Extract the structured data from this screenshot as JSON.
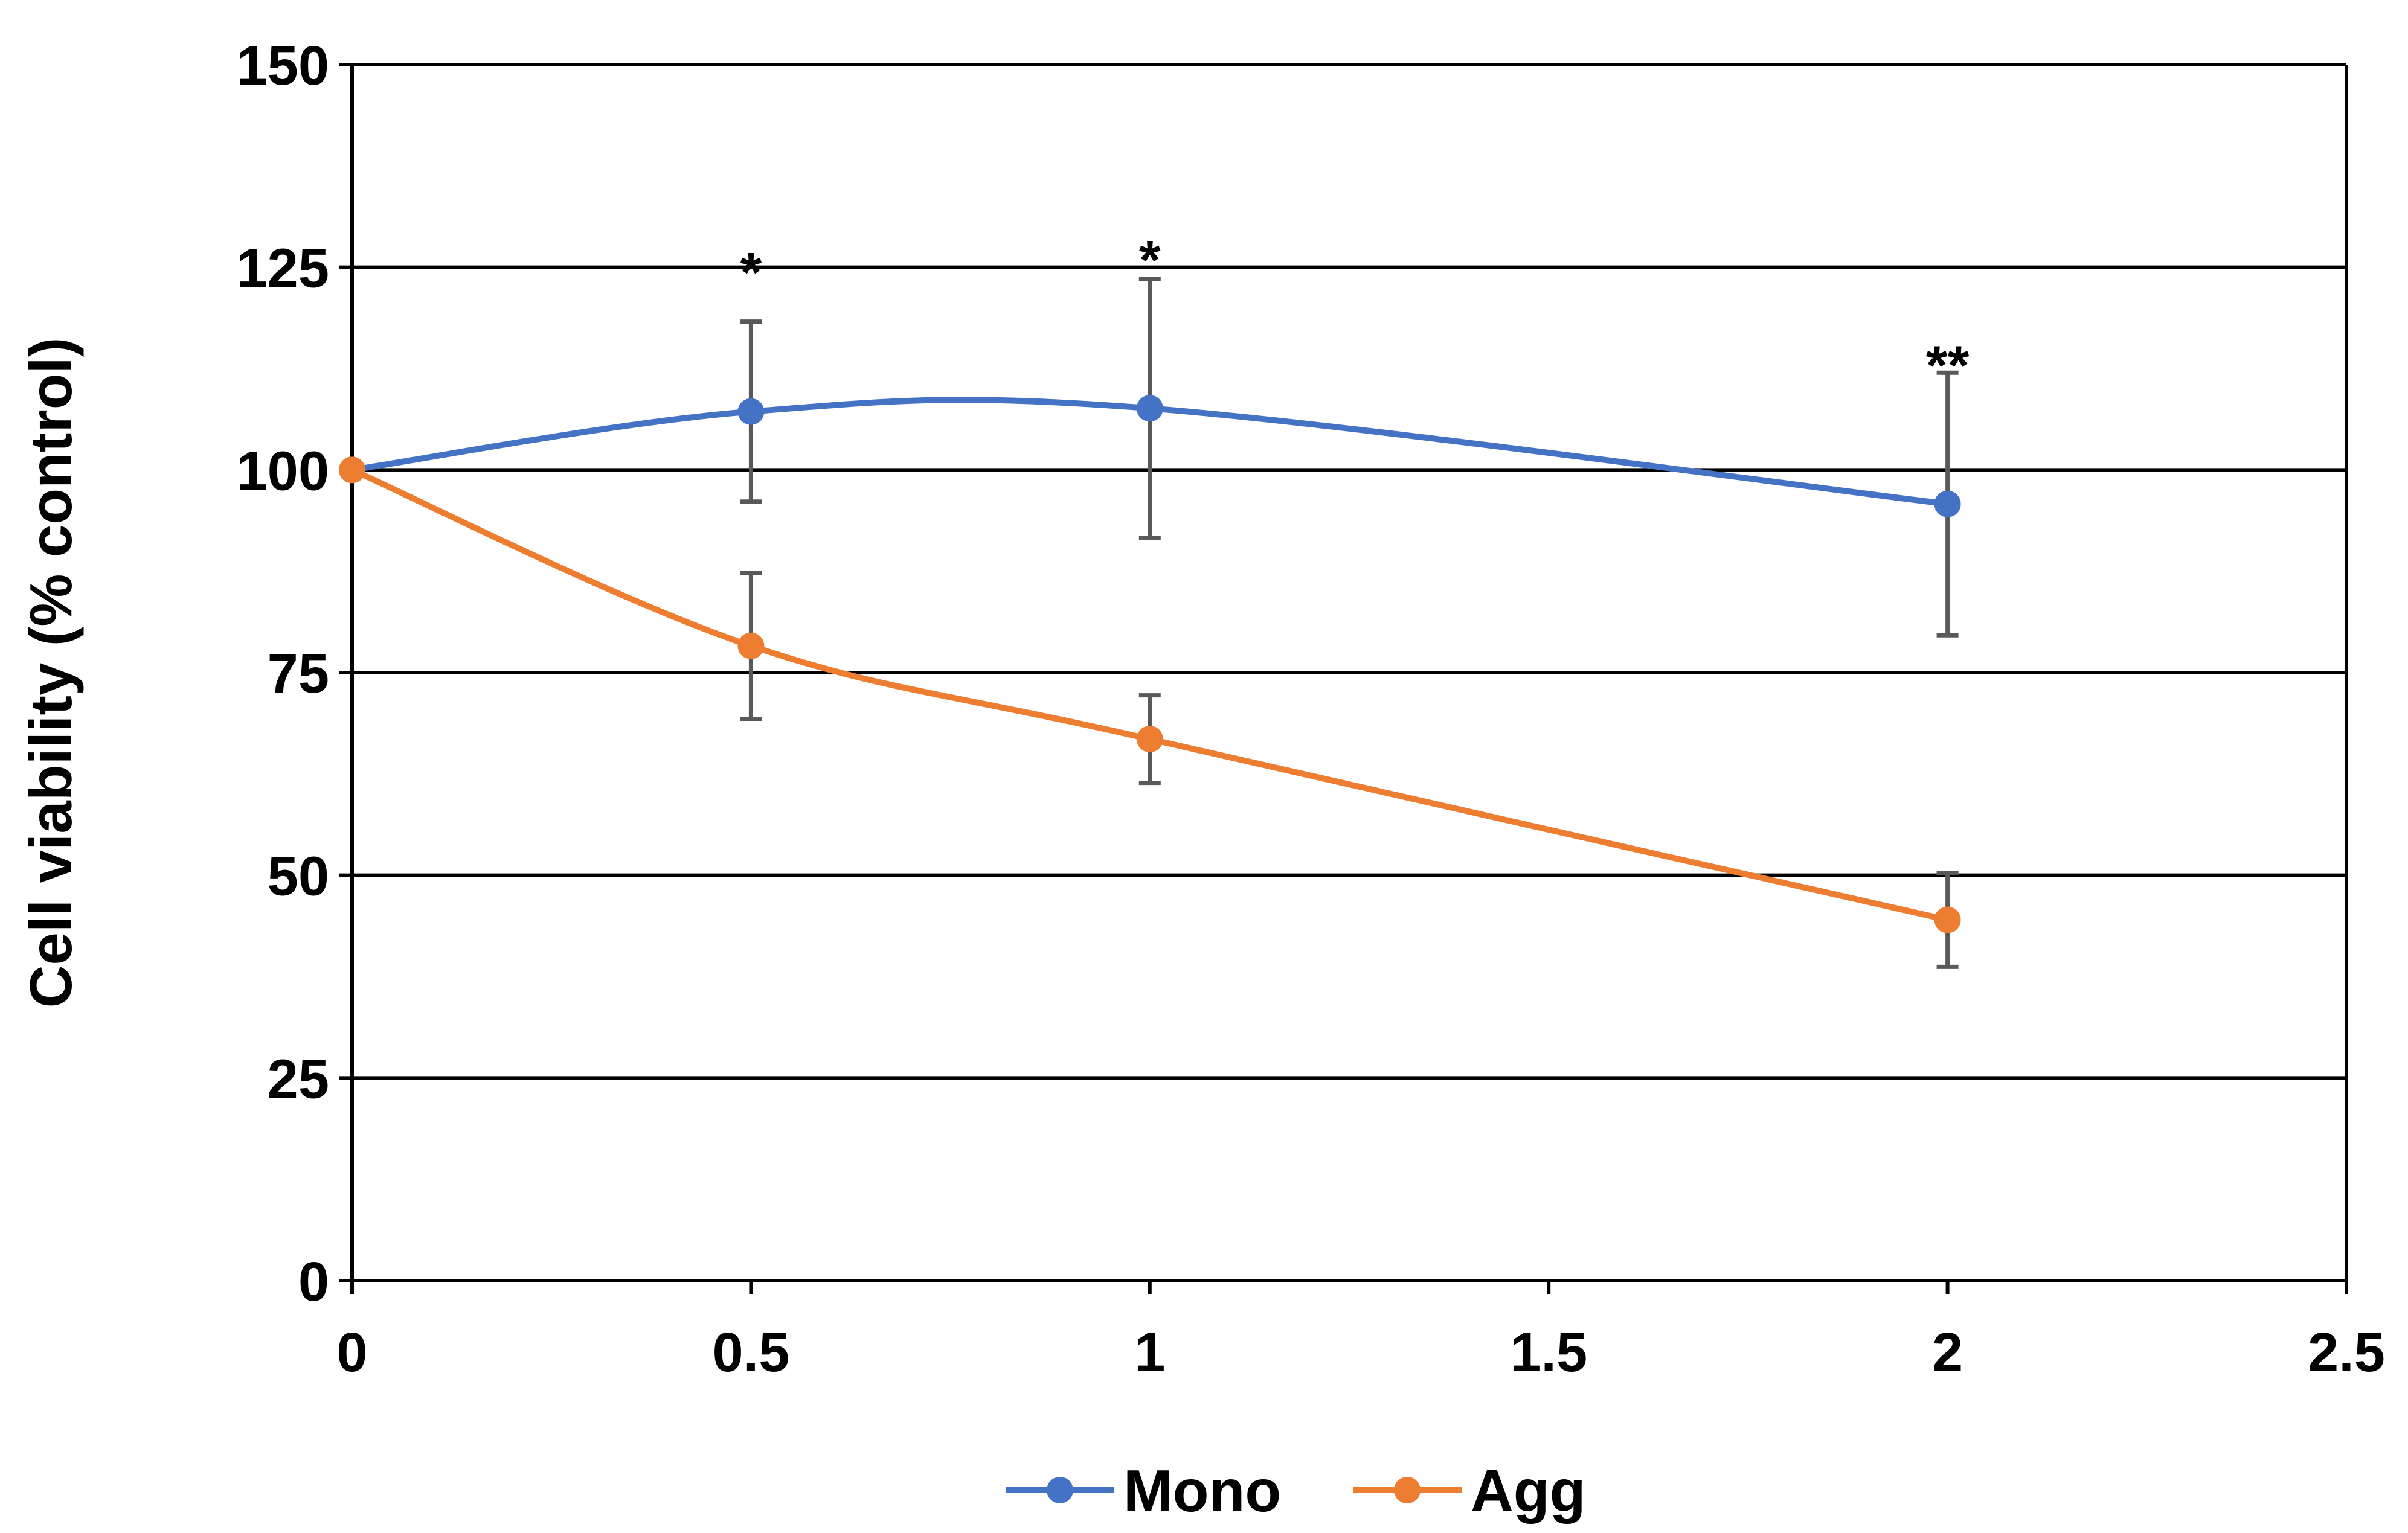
{
  "chart_data": {
    "type": "line",
    "title": "",
    "xlabel": "",
    "ylabel": "Cell viability (% control)",
    "xlim": [
      0,
      2.5
    ],
    "ylim": [
      0,
      150
    ],
    "xticks": [
      "0",
      "0.5",
      "1",
      "1.5",
      "2",
      "2.5"
    ],
    "yticks": [
      "0",
      "25",
      "50",
      "75",
      "100",
      "125",
      "150"
    ],
    "grid": "horizontal",
    "legend_position": "bottom",
    "series": [
      {
        "name": "Mono",
        "color": "#4472C4",
        "smooth": true,
        "x": [
          0,
          0.5,
          1,
          2
        ],
        "y": [
          100,
          107.2,
          107.6,
          95.8
        ],
        "err": [
          null,
          11.1,
          16.0,
          16.2
        ]
      },
      {
        "name": "Agg",
        "color": "#ED7D31",
        "smooth": true,
        "x": [
          0,
          0.5,
          1,
          2
        ],
        "y": [
          100,
          78.3,
          66.8,
          44.5
        ],
        "err": [
          null,
          9.0,
          5.4,
          5.8
        ]
      }
    ],
    "annotations": [
      {
        "text": "*",
        "x": 0.5,
        "y": 125
      },
      {
        "text": "*",
        "x": 1,
        "y": 126.5
      },
      {
        "text": "**",
        "x": 2,
        "y": 113.5
      }
    ]
  }
}
